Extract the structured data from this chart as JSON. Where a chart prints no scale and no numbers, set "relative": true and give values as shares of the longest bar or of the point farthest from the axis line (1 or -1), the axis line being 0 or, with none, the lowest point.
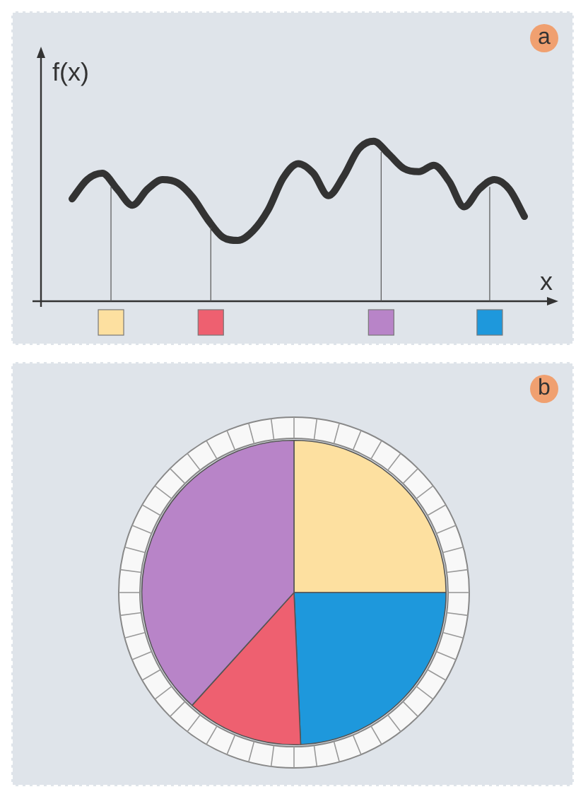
{
  "chart_data": [
    {
      "type": "line",
      "annotations": [
        "a"
      ],
      "xlabel": "x",
      "ylabel": "f(x)",
      "relative": true,
      "color": "#333333",
      "categories": [
        null,
        null,
        null,
        null,
        null,
        null,
        null,
        null,
        null,
        null,
        null,
        null,
        null,
        null,
        null,
        null,
        null,
        null,
        null,
        null,
        null,
        null,
        null,
        null,
        null,
        null,
        null,
        null,
        null,
        null,
        null
      ],
      "values": [
        0.64,
        0.76,
        0.8,
        0.7,
        0.6,
        0.7,
        0.76,
        0.74,
        0.65,
        0.51,
        0.4,
        0.38,
        0.44,
        0.57,
        0.77,
        0.86,
        0.8,
        0.66,
        0.78,
        0.95,
        1,
        0.92,
        0.83,
        0.81,
        0.85,
        0.75,
        0.59,
        0.7,
        0.76,
        0.7,
        0.53
      ]
    },
    {
      "type": "pie",
      "annotations": [
        "b"
      ],
      "categories": [
        null,
        null,
        null,
        null
      ],
      "values": [
        25,
        24.3,
        12.4,
        38.3
      ],
      "colors": [
        "#fde0a0",
        "#1e98dc",
        "#ee6070",
        "#b884c8"
      ]
    }
  ]
}
